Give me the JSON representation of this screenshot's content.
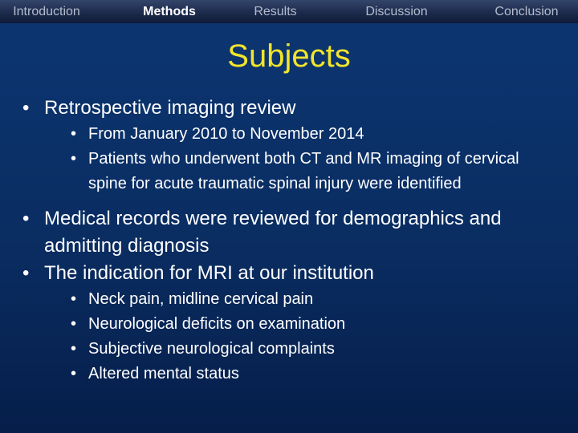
{
  "nav": {
    "tabs": [
      "Introduction",
      "Methods",
      "Results",
      "Discussion",
      "Conclusion"
    ]
  },
  "title": "Subjects",
  "bullets": [
    {
      "text": "Retrospective imaging review",
      "sub": [
        "From January 2010 to November 2014",
        "Patients who underwent both CT and MR imaging of cervical spine for acute traumatic spinal injury were identified"
      ]
    },
    {
      "text": "Medical records were reviewed for demographics and admitting diagnosis",
      "sub": []
    },
    {
      "text": "The indication for MRI at our institution",
      "sub": [
        "Neck pain, midline cervical pain",
        "Neurological deficits on examination",
        "Subjective neurological complaints",
        "Altered mental status"
      ]
    }
  ]
}
